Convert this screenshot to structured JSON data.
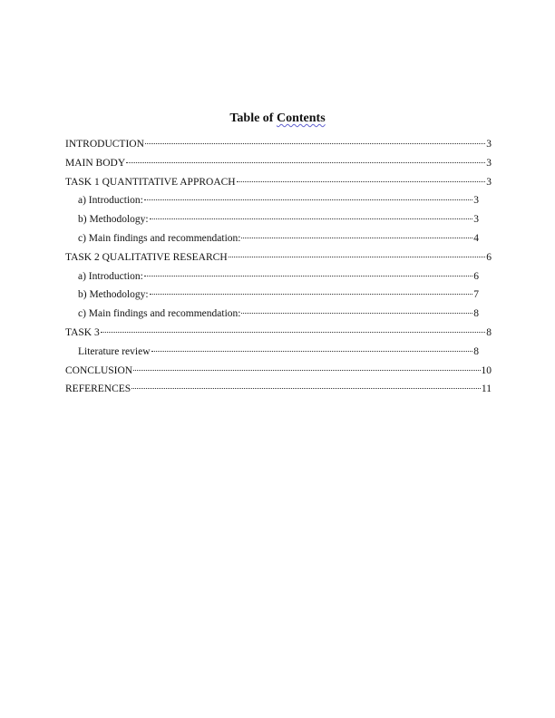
{
  "document": {
    "title_prefix": "Table of ",
    "title_word": "Contents",
    "entries": [
      {
        "label": "INTRODUCTION",
        "page": "3",
        "level": 1
      },
      {
        "label": "MAIN BODY",
        "page": "3",
        "level": 1
      },
      {
        "label": "TASK 1 QUANTITATIVE APPROACH",
        "page": "3",
        "level": 1
      },
      {
        "label": "a) Introduction:",
        "page": "3",
        "level": 2
      },
      {
        "label": "b) Methodology:",
        "page": "3",
        "level": 2
      },
      {
        "label": "c) Main findings and recommendation:",
        "page": "4",
        "level": 2
      },
      {
        "label": "TASK 2 QUALITATIVE RESEARCH",
        "page": "6",
        "level": 1
      },
      {
        "label": "a) Introduction:",
        "page": "6",
        "level": 2
      },
      {
        "label": "b) Methodology:",
        "page": "7",
        "level": 2
      },
      {
        "label": "c) Main findings and recommendation:",
        "page": "8",
        "level": 2
      },
      {
        "label": "TASK 3",
        "page": "8",
        "level": 1
      },
      {
        "label": "Literature review",
        "page": "8",
        "level": 2
      },
      {
        "label": "CONCLUSION",
        "page": "10",
        "level": 1
      },
      {
        "label": "REFERENCES",
        "page": "11",
        "level": 1
      }
    ]
  }
}
